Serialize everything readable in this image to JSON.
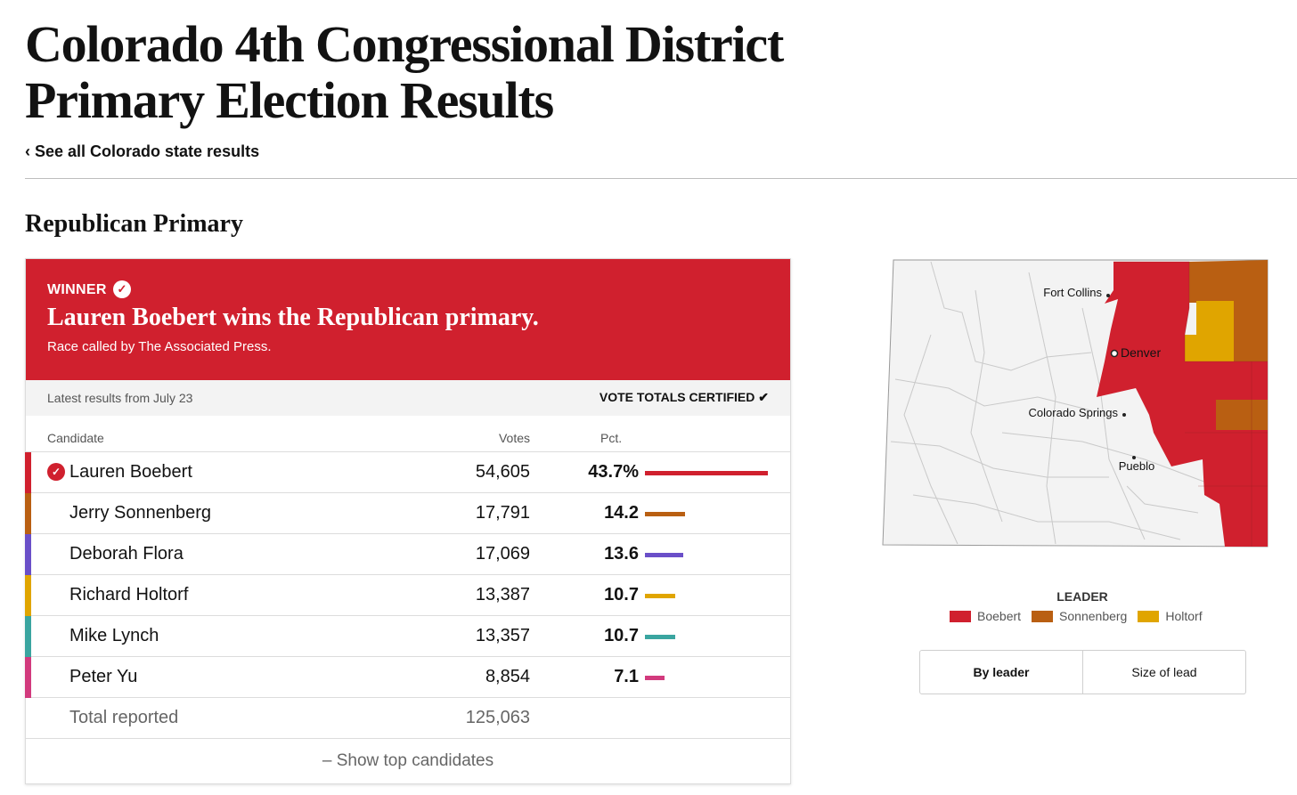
{
  "page": {
    "title": "Colorado 4th Congressional District Primary Election Results",
    "back_link": "‹ See all Colorado state results",
    "section_title": "Republican Primary"
  },
  "winner": {
    "label": "WINNER",
    "headline": "Lauren Boebert wins the Republican primary.",
    "called_by": "Race called by The Associated Press."
  },
  "status": {
    "latest": "Latest results from July 23",
    "certified": "VOTE TOTALS CERTIFIED ✔"
  },
  "table": {
    "headers": {
      "candidate": "Candidate",
      "votes": "Votes",
      "pct": "Pct."
    },
    "candidates": [
      {
        "name": "Lauren Boebert",
        "votes": "54,605",
        "pct": "43.7%",
        "pct_value": 43.7,
        "color": "#d0202e",
        "winner": true
      },
      {
        "name": "Jerry Sonnenberg",
        "votes": "17,791",
        "pct": "14.2",
        "pct_value": 14.2,
        "color": "#b95f12",
        "winner": false
      },
      {
        "name": "Deborah Flora",
        "votes": "17,069",
        "pct": "13.6",
        "pct_value": 13.6,
        "color": "#6a4fc8",
        "winner": false
      },
      {
        "name": "Richard Holtorf",
        "votes": "13,387",
        "pct": "10.7",
        "pct_value": 10.7,
        "color": "#e0a500",
        "winner": false
      },
      {
        "name": "Mike Lynch",
        "votes": "13,357",
        "pct": "10.7",
        "pct_value": 10.7,
        "color": "#3aa5a0",
        "winner": false
      },
      {
        "name": "Peter Yu",
        "votes": "8,854",
        "pct": "7.1",
        "pct_value": 7.1,
        "color": "#d23a7d",
        "winner": false
      }
    ],
    "total_label": "Total reported",
    "total_votes": "125,063",
    "toggle_label": "– Show top candidates"
  },
  "map": {
    "cities": {
      "fort_collins": "Fort Collins",
      "denver": "Denver",
      "colorado_springs": "Colorado Springs",
      "pueblo": "Pueblo"
    },
    "colors": {
      "boebert": "#d0202e",
      "sonnenberg": "#b95f12",
      "holtorf": "#e0a500",
      "base": "#f3f3f3"
    }
  },
  "legend": {
    "title": "LEADER",
    "items": [
      {
        "name": "Boebert",
        "color": "#d0202e"
      },
      {
        "name": "Sonnenberg",
        "color": "#b95f12"
      },
      {
        "name": "Holtorf",
        "color": "#e0a500"
      }
    ]
  },
  "view_toggle": {
    "by_leader": "By leader",
    "size_of_lead": "Size of lead"
  }
}
